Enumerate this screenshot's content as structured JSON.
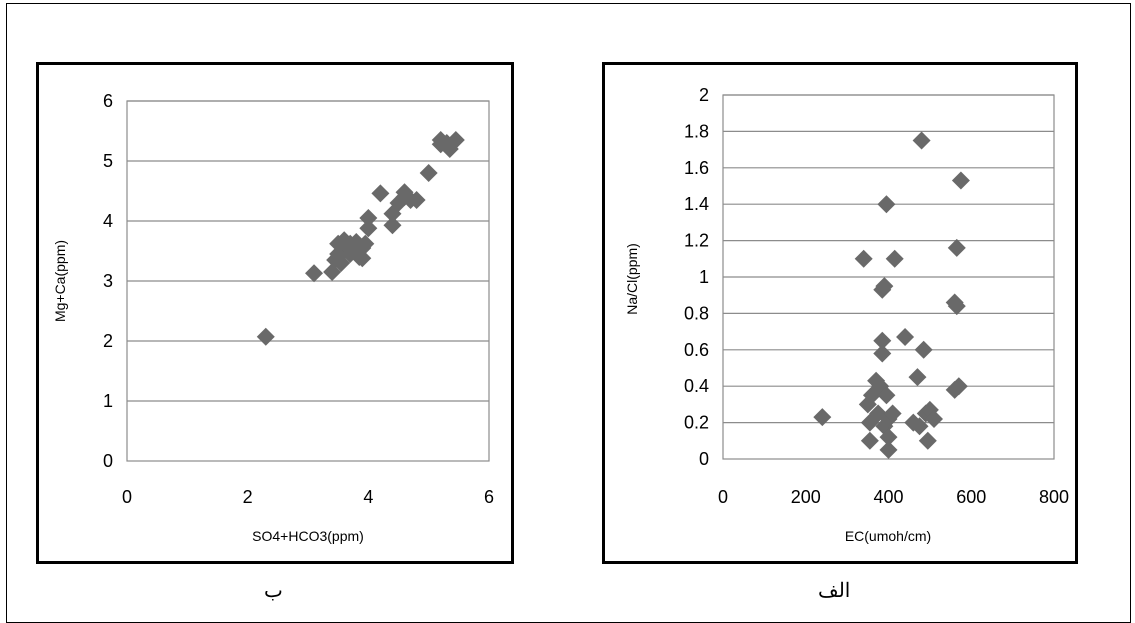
{
  "chart_data": [
    {
      "type": "scatter",
      "title": "",
      "caption": "ب",
      "xlabel": "SO4+HCO3(ppm)",
      "ylabel": "Mg+Ca(ppm)",
      "xlim": [
        0,
        6
      ],
      "ylim": [
        0,
        6
      ],
      "xticks": [
        0,
        2,
        4,
        6
      ],
      "yticks": [
        0,
        1,
        2,
        3,
        4,
        5,
        6
      ],
      "grid": "horizontal",
      "marker": "diamond",
      "marker_color": "#696969",
      "points": [
        [
          2.3,
          2.07
        ],
        [
          3.1,
          3.13
        ],
        [
          3.4,
          3.15
        ],
        [
          3.45,
          3.35
        ],
        [
          3.5,
          3.45
        ],
        [
          3.5,
          3.62
        ],
        [
          3.55,
          3.3
        ],
        [
          3.6,
          3.5
        ],
        [
          3.6,
          3.68
        ],
        [
          3.65,
          3.58
        ],
        [
          3.7,
          3.45
        ],
        [
          3.7,
          3.62
        ],
        [
          3.75,
          3.55
        ],
        [
          3.8,
          3.48
        ],
        [
          3.8,
          3.65
        ],
        [
          3.85,
          3.4
        ],
        [
          3.85,
          3.58
        ],
        [
          3.9,
          3.38
        ],
        [
          3.9,
          3.55
        ],
        [
          3.95,
          3.62
        ],
        [
          4.0,
          3.88
        ],
        [
          4.0,
          4.05
        ],
        [
          4.2,
          4.46
        ],
        [
          4.4,
          3.93
        ],
        [
          4.4,
          4.12
        ],
        [
          4.5,
          4.3
        ],
        [
          4.6,
          4.4
        ],
        [
          4.6,
          4.48
        ],
        [
          4.7,
          4.35
        ],
        [
          4.8,
          4.35
        ],
        [
          5.0,
          4.8
        ],
        [
          5.2,
          5.35
        ],
        [
          5.2,
          5.28
        ],
        [
          5.3,
          5.3
        ],
        [
          5.35,
          5.2
        ],
        [
          5.45,
          5.35
        ]
      ]
    },
    {
      "type": "scatter",
      "title": "",
      "caption": "الف",
      "xlabel": "EC(umoh/cm)",
      "ylabel": "Na/Cl(ppm)",
      "xlim": [
        0,
        800
      ],
      "ylim": [
        0,
        2
      ],
      "xticks": [
        0,
        200,
        400,
        600,
        800
      ],
      "yticks": [
        0,
        0.2,
        0.4,
        0.6,
        0.8,
        1,
        1.2,
        1.4,
        1.6,
        1.8,
        2
      ],
      "grid": "horizontal",
      "marker": "diamond",
      "marker_color": "#696969",
      "points": [
        [
          240,
          0.23
        ],
        [
          340,
          1.1
        ],
        [
          350,
          0.3
        ],
        [
          355,
          0.2
        ],
        [
          355,
          0.1
        ],
        [
          360,
          0.35
        ],
        [
          370,
          0.43
        ],
        [
          375,
          0.25
        ],
        [
          380,
          0.4
        ],
        [
          385,
          0.93
        ],
        [
          385,
          0.58
        ],
        [
          385,
          0.65
        ],
        [
          390,
          0.95
        ],
        [
          390,
          0.18
        ],
        [
          395,
          0.35
        ],
        [
          395,
          1.4
        ],
        [
          400,
          0.05
        ],
        [
          400,
          0.12
        ],
        [
          400,
          0.22
        ],
        [
          410,
          0.25
        ],
        [
          415,
          1.1
        ],
        [
          440,
          0.67
        ],
        [
          460,
          0.2
        ],
        [
          470,
          0.45
        ],
        [
          475,
          0.18
        ],
        [
          480,
          1.75
        ],
        [
          485,
          0.6
        ],
        [
          490,
          0.25
        ],
        [
          495,
          0.1
        ],
        [
          500,
          0.27
        ],
        [
          510,
          0.22
        ],
        [
          560,
          0.86
        ],
        [
          560,
          0.38
        ],
        [
          565,
          1.16
        ],
        [
          565,
          0.84
        ],
        [
          570,
          0.4
        ],
        [
          575,
          1.53
        ]
      ]
    }
  ]
}
